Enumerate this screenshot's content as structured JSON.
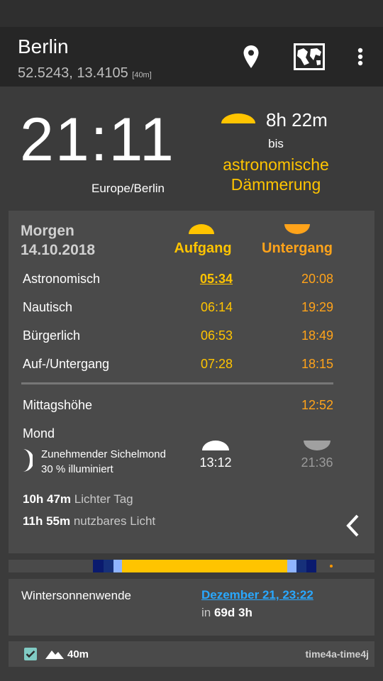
{
  "header": {
    "city": "Berlin",
    "coords": "52.5243, 13.4105",
    "altitude": "[40m]",
    "icons": [
      "location-pin-icon",
      "map-icon",
      "more-vert-icon"
    ]
  },
  "now": {
    "time": "21:11",
    "timezone": "Europe/Berlin",
    "countdown": "8h 22m",
    "until_label": "bis",
    "next_event": "astronomische Dämmerung"
  },
  "tomorrow": {
    "label": "Morgen",
    "date": "14.10.2018",
    "rise_header": "Aufgang",
    "set_header": "Untergang",
    "rows": [
      {
        "label": "Astronomisch",
        "rise": "05:34",
        "set": "20:08"
      },
      {
        "label": "Nautisch",
        "rise": "06:14",
        "set": "19:29"
      },
      {
        "label": "Bürgerlich",
        "rise": "06:53",
        "set": "18:49"
      },
      {
        "label": "Auf-/Untergang",
        "rise": "07:28",
        "set": "18:15"
      }
    ],
    "noon_label": "Mittagshöhe",
    "noon_time": "12:52",
    "moon_label": "Mond",
    "moon_phase": "Zunehmender Sichelmond",
    "moon_illum": "30 % illuminiert",
    "moonrise": "13:12",
    "moonset": "21:36",
    "day_length": "10h 47m",
    "day_length_label": "Lichter Tag",
    "usable_light": "11h 55m",
    "usable_light_label": "nutzbares Licht"
  },
  "colors": {
    "sun_rise": "#ffc400",
    "sun_set": "#ffa31a",
    "link": "#29a8ff",
    "night": "#0a1a6e",
    "astro": "#16307a",
    "civil": "#8fb4ff",
    "day": "#ffc400"
  },
  "solstice": {
    "label": "Wintersonnenwende",
    "date": "Dezember 21, 23:22",
    "in_label": "in",
    "in_value": "69d 3h"
  },
  "footer": {
    "altitude": "40m",
    "library": "time4a-time4j"
  }
}
